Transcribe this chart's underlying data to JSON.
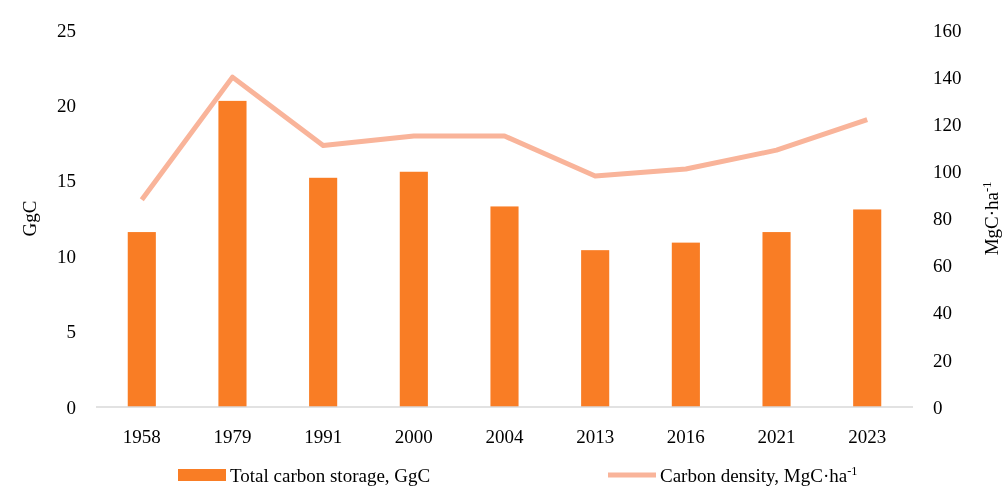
{
  "chart_data": {
    "type": "bar",
    "ylabel": "GgC",
    "y2label": "MgC·ha$^{-1}$",
    "categories": [
      "1958",
      "1979",
      "1991",
      "2000",
      "2004",
      "2013",
      "2016",
      "2021",
      "2023"
    ],
    "series": [
      {
        "name": "Total carbon storage, GgC",
        "color": "#f97d25",
        "values": [
          11.6,
          20.3,
          15.2,
          15.6,
          13.3,
          10.4,
          10.9,
          11.6,
          13.1
        ]
      },
      {
        "name": "Carbon density, MgC·ha$^{-1}$",
        "type": "line",
        "axis": "y2",
        "color": "#f9b49a",
        "values": [
          88,
          140,
          111,
          115,
          115,
          98,
          101,
          109,
          122
        ]
      }
    ],
    "ylim": [
      0,
      25
    ],
    "yticks": [
      0,
      5,
      10,
      15,
      20,
      25
    ],
    "y2lim": [
      0,
      160
    ],
    "y2ticks": [
      0,
      20,
      40,
      60,
      80,
      100,
      120,
      140,
      160
    ],
    "grid": false,
    "legend": "bottom"
  }
}
